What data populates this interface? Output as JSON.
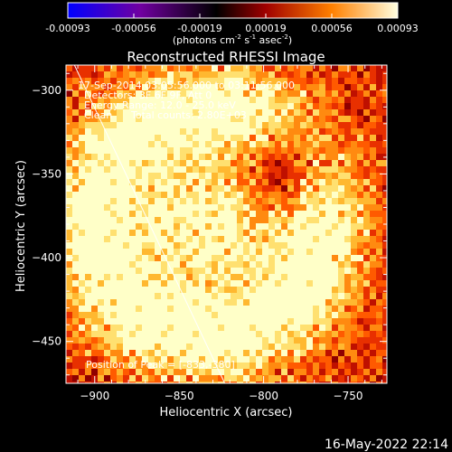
{
  "chart_data": {
    "type": "heatmap",
    "title": "Reconstructed RHESSI Image",
    "xlabel": "Heliocentric X (arcsec)",
    "ylabel": "Heliocentric Y (arcsec)",
    "xlim": [
      -917,
      -727
    ],
    "ylim": [
      -475,
      -285
    ],
    "x_ticks": [
      -900,
      -850,
      -800,
      -750
    ],
    "y_ticks": [
      -300,
      -350,
      -400,
      -450
    ],
    "x_tick_labels": [
      "−900",
      "−850",
      "−800",
      "−750"
    ],
    "y_tick_labels": [
      "−300",
      "−350",
      "−400",
      "−450"
    ],
    "colorbar": {
      "range": [
        -0.00093,
        0.00093
      ],
      "tick_labels": [
        "-0.00093",
        "-0.00056",
        "-0.00019",
        "0.00019",
        "0.00056",
        "0.00093"
      ],
      "colors": [
        "#0000ff",
        "#7000a0",
        "#000000",
        "#a00000",
        "#ff8000",
        "#ffffe0"
      ]
    },
    "units": {
      "base": "(photons cm",
      "exp1": "-2",
      "mid1": " s",
      "exp2": "-1",
      "mid2": " asec",
      "exp3": "-2",
      "end": ")"
    },
    "info": {
      "time": "17-Sep-2014 03:05:56.000 to 03:11:56.000",
      "detectors": "Detectors: 3F 6F 9F, Att 0",
      "energy": "Energy Range: 12.0 - 25.0 keV",
      "method": "Clean",
      "counts": "Total counts: 2.80E+03"
    },
    "peak": {
      "label": "Position of Peak = ",
      "value": "[-833,-380]",
      "x": -833,
      "y": -380
    },
    "limb_line": {
      "x1": -912,
      "y1": -285,
      "x2": -823,
      "y2": -475
    }
  },
  "footer": {
    "timestamp": "16-May-2022 22:14"
  }
}
